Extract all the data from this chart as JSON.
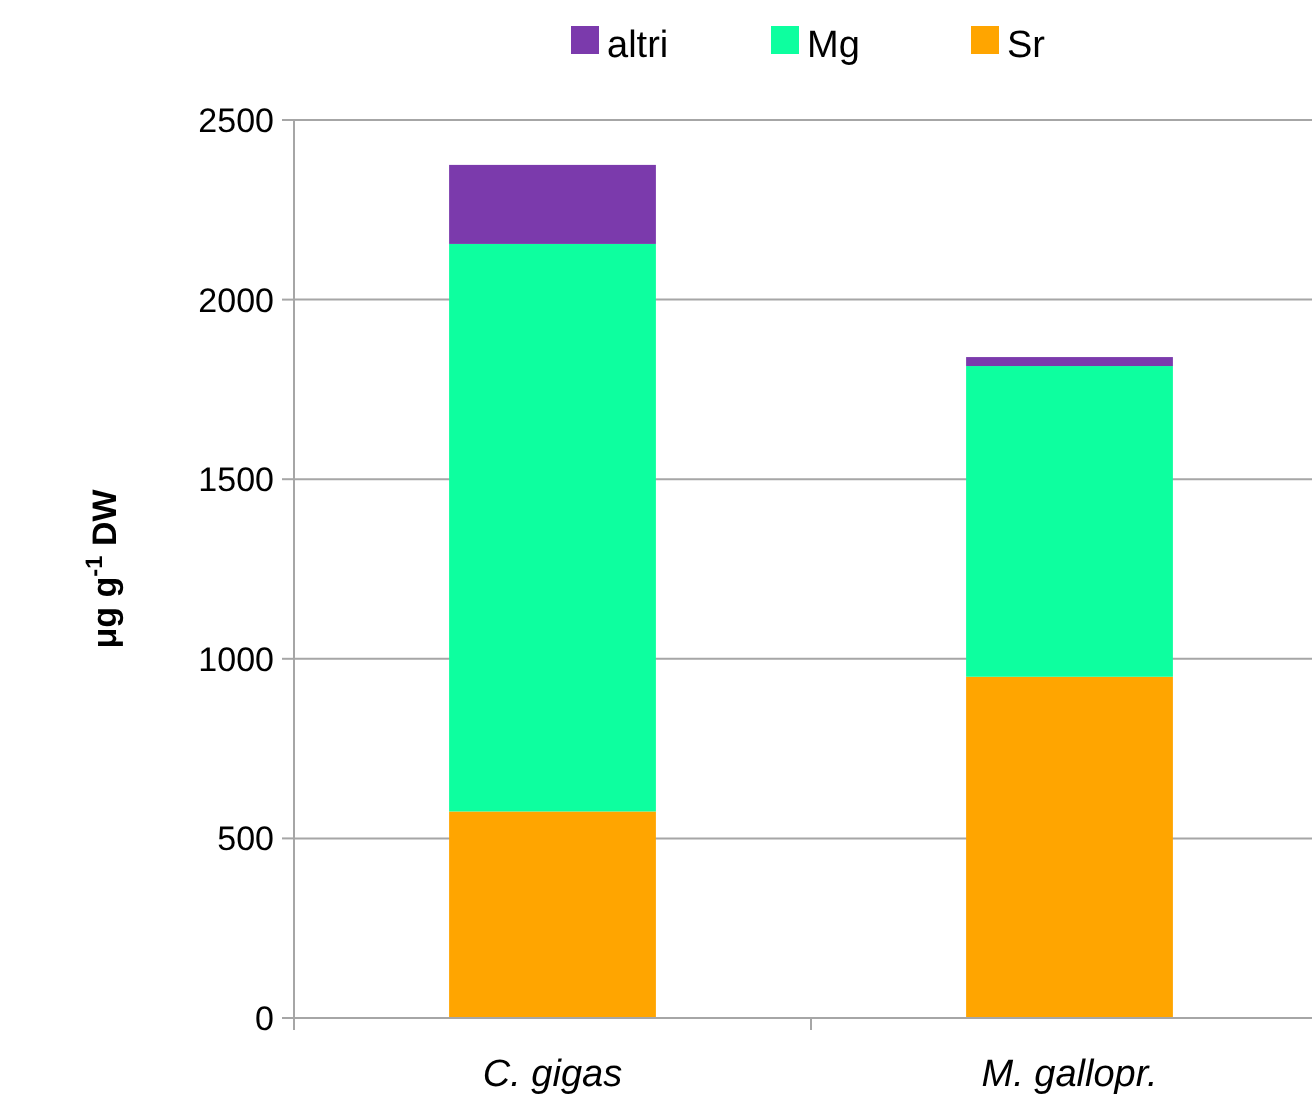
{
  "chart_data": {
    "type": "bar",
    "stacked": true,
    "categories": [
      "C. gigas",
      "M. gallopr."
    ],
    "ylabel": "μg g$^{-1}$ DW",
    "ylim": [
      0,
      2500
    ],
    "yticks": [
      0,
      500,
      1000,
      1500,
      2000,
      2500
    ],
    "grid": "y",
    "legend": "top",
    "series": [
      {
        "name": "Sr",
        "color": "#ffa500",
        "values": [
          575,
          950
        ]
      },
      {
        "name": "Mg",
        "color": "#0dff9f",
        "values": [
          1580,
          865
        ]
      },
      {
        "name": "altri",
        "color": "#7b3aac",
        "values": [
          220,
          25
        ]
      }
    ]
  }
}
